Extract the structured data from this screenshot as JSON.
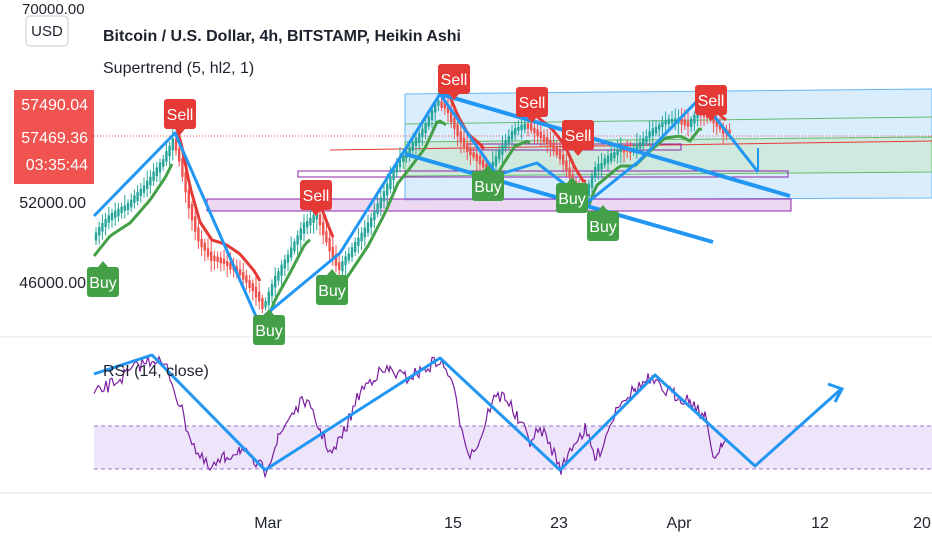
{
  "header": {
    "currency_badge": "USD",
    "title": "Bitcoin / U.S. Dollar, 4h, BITSTAMP, Heikin Ashi",
    "indicator": "Supertrend (5, hl2, 1)",
    "rsi_label": "RSI (14, close)"
  },
  "price_scale": {
    "top_tick": "70000.00",
    "ticks": [
      "52000.00",
      "46000.00"
    ],
    "price_label_1": "57490.04",
    "price_label_2": "57469.36",
    "countdown": "03:35:44"
  },
  "time_axis": {
    "ticks": [
      "Mar",
      "15",
      "23",
      "Apr",
      "12",
      "20"
    ]
  },
  "signals": {
    "buy_label": "Buy",
    "sell_label": "Sell"
  },
  "colors": {
    "up": "#26a69a",
    "down": "#ef5350",
    "supertrend_up": "#43a047",
    "supertrend_down": "#e53935",
    "annotation": "#2196f3",
    "rsi_line": "#7b1fa2",
    "rsi_band": "#e8dcf8",
    "price_label": "#f05350"
  },
  "chart_data": {
    "type": "candlestick",
    "symbol": "Bitcoin / U.S. Dollar",
    "interval": "4h",
    "exchange": "BITSTAMP",
    "candle_style": "Heikin Ashi",
    "x_ticks": [
      "Mar",
      "15",
      "23",
      "Apr",
      "12",
      "20"
    ],
    "y_ticks": [
      70000,
      52000,
      46000
    ],
    "last_price_labels": [
      57490.04,
      57469.36
    ],
    "indicators": [
      {
        "name": "Supertrend (5, hl2, 1)"
      },
      {
        "name": "RSI (14, close)"
      }
    ],
    "signals": [
      {
        "label": "Buy",
        "approx_date": "Feb 20"
      },
      {
        "label": "Sell",
        "approx_date": "Feb 21"
      },
      {
        "label": "Buy",
        "approx_date": "Feb 28"
      },
      {
        "label": "Sell",
        "approx_date": "Mar 4"
      },
      {
        "label": "Buy",
        "approx_date": "Mar 5"
      },
      {
        "label": "Sell",
        "approx_date": "Mar 14"
      },
      {
        "label": "Buy",
        "approx_date": "Mar 17"
      },
      {
        "label": "Sell",
        "approx_date": "Mar 19"
      },
      {
        "label": "Sell",
        "approx_date": "Mar 24"
      },
      {
        "label": "Buy",
        "approx_date": "Mar 24"
      },
      {
        "label": "Buy",
        "approx_date": "Mar 25"
      },
      {
        "label": "Sell",
        "approx_date": "Apr 3"
      }
    ]
  }
}
